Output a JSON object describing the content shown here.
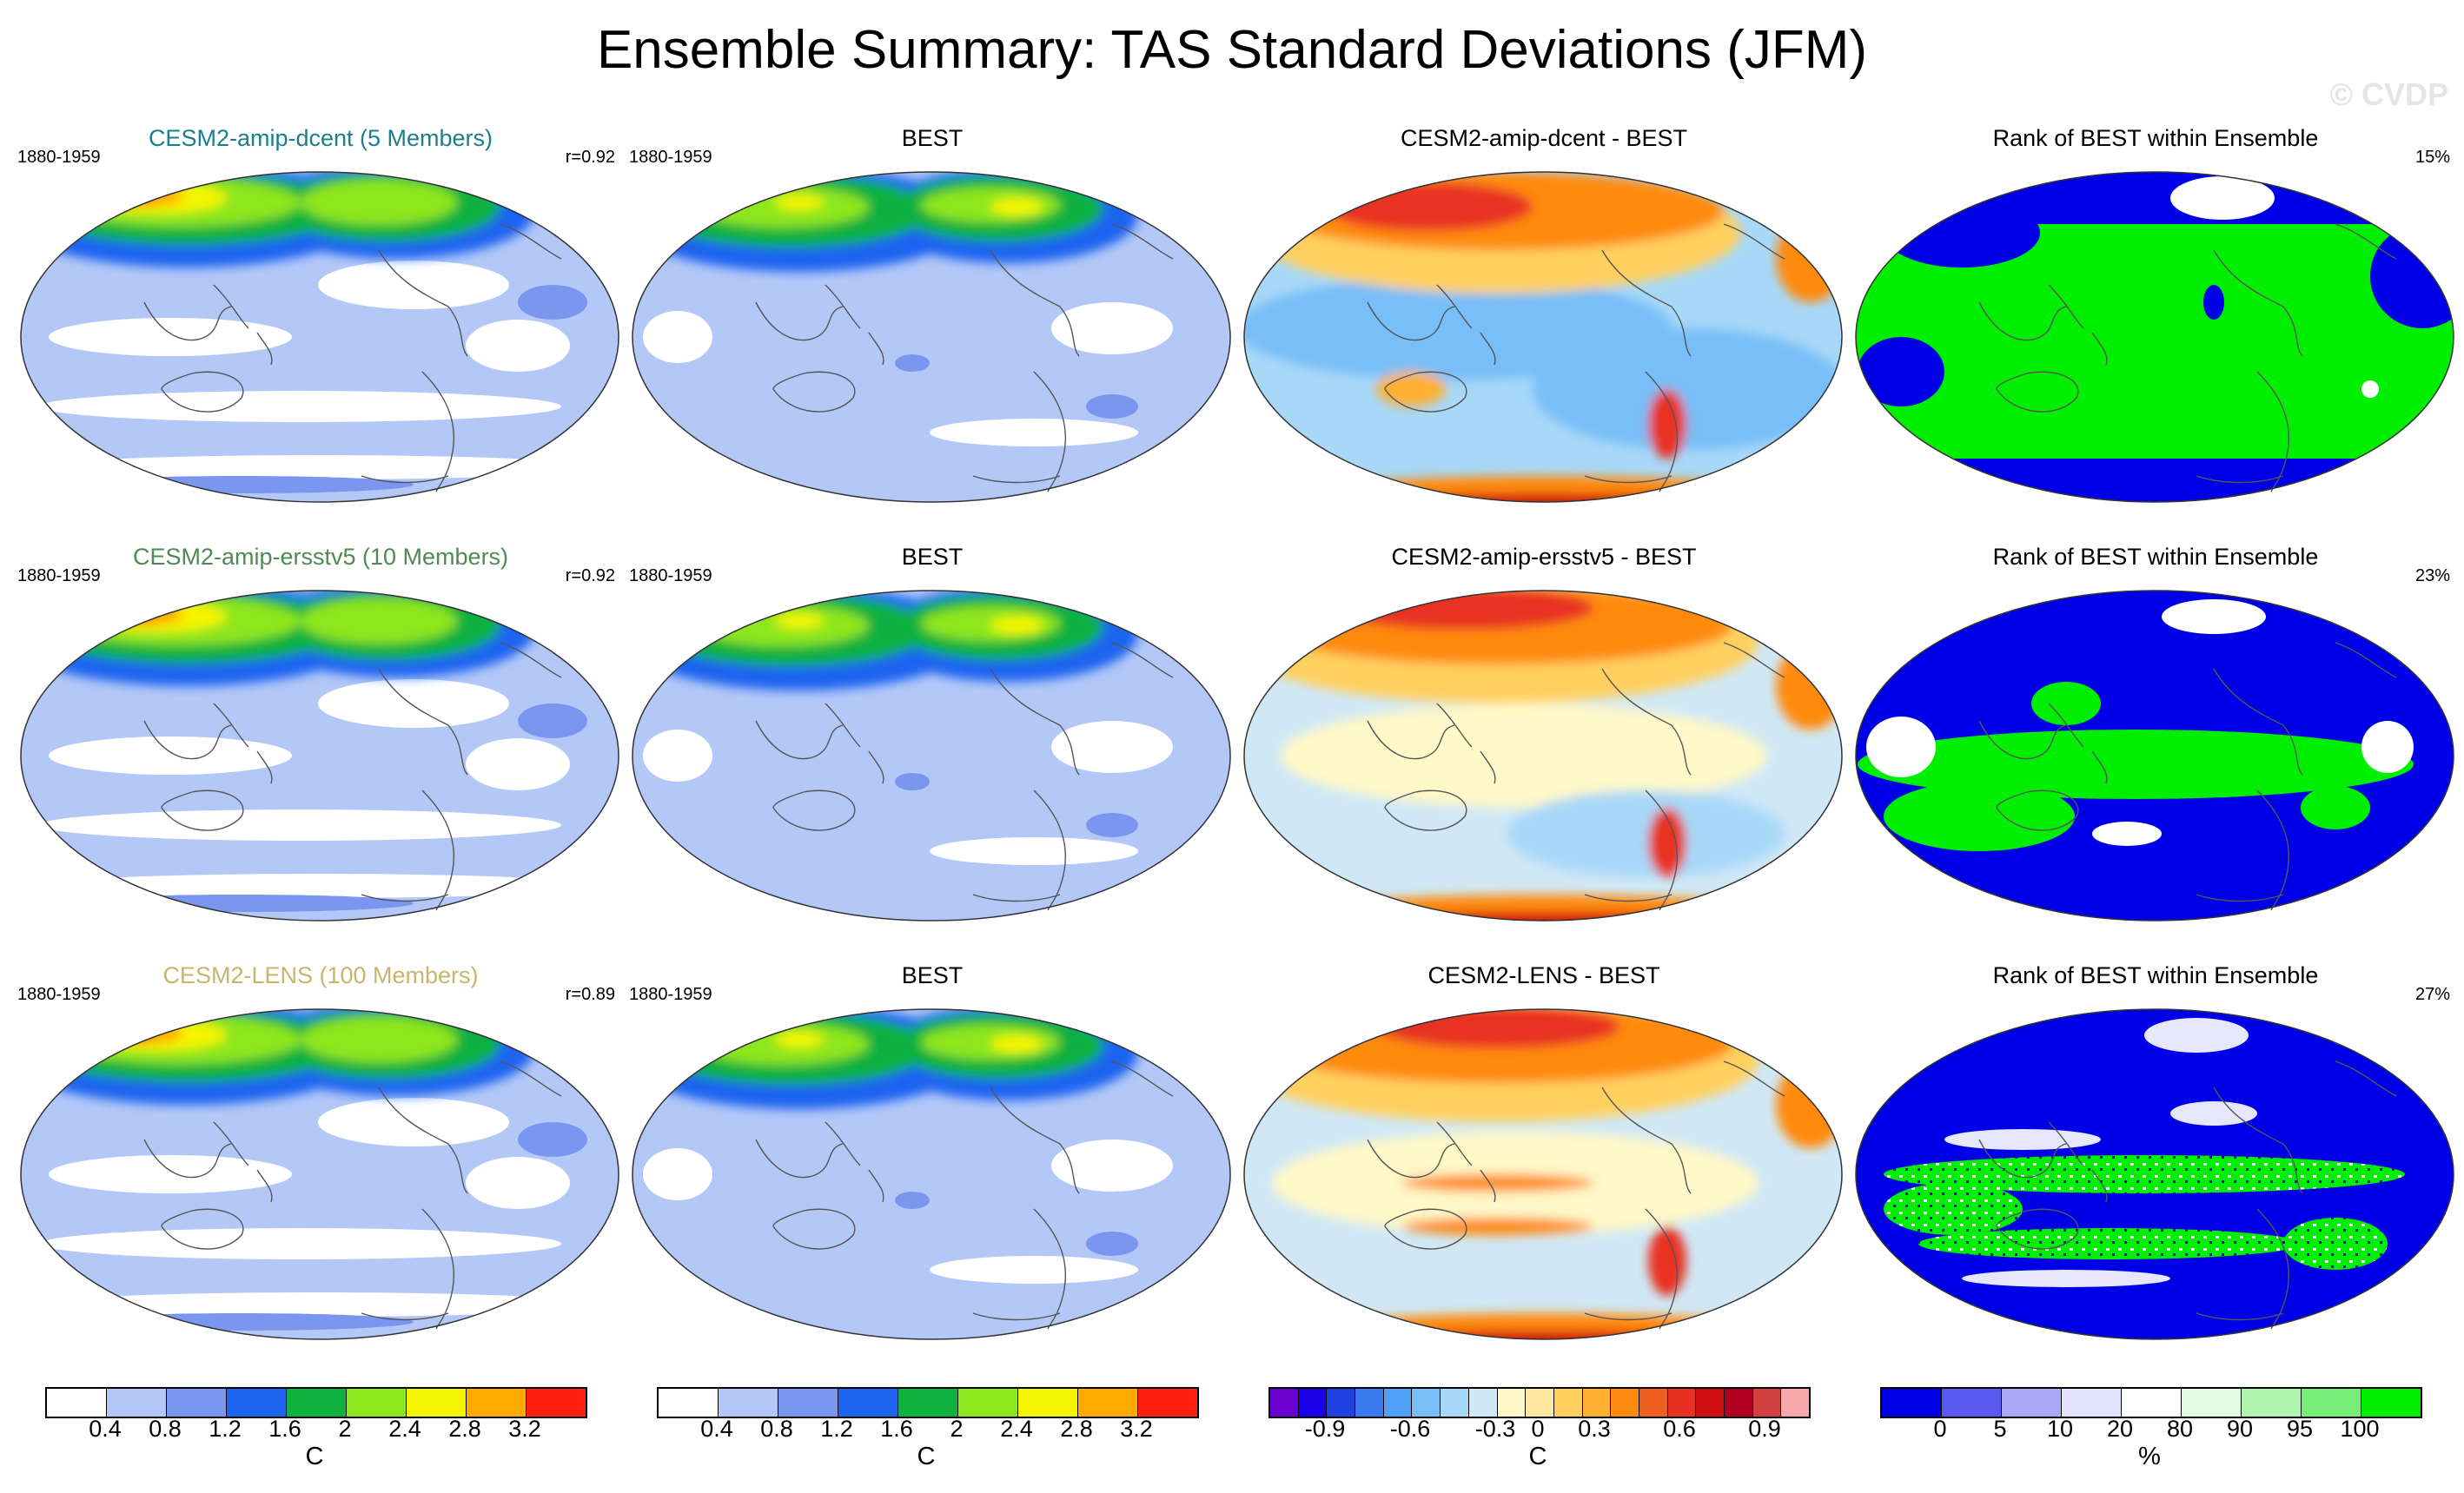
{
  "title": "Ensemble Summary: TAS Standard Deviations (JFM)",
  "watermark": "© CVDP",
  "colors": {
    "ensemble_ag1": "#1a7f8a",
    "ensemble_ag2": "#4f8a55",
    "ensemble_lens": "#c9b56a",
    "map_land_outline": "#555555",
    "rank_low": "#0000dd",
    "rank_high": "#00ee00"
  },
  "rows": [
    {
      "period": "1880-1959",
      "col1": {
        "title": "CESM2-amip-dcent (5 Members)",
        "title_color": "#1a7f8a",
        "corr": "r=0.92"
      },
      "col2": {
        "title": "BEST"
      },
      "col3": {
        "title": "CESM2-amip-dcent - BEST"
      },
      "col4": {
        "title": "Rank of BEST within Ensemble",
        "pct": "15%"
      }
    },
    {
      "period": "1880-1959",
      "col1": {
        "title": "CESM2-amip-ersstv5 (10 Members)",
        "title_color": "#4f8a55",
        "corr": "r=0.92"
      },
      "col2": {
        "title": "BEST"
      },
      "col3": {
        "title": "CESM2-amip-ersstv5 - BEST"
      },
      "col4": {
        "title": "Rank of BEST within Ensemble",
        "pct": "23%"
      }
    },
    {
      "period": "1880-1959",
      "col1": {
        "title": "CESM2-LENS (100 Members)",
        "title_color": "#c9b56a",
        "corr": "r=0.89"
      },
      "col2": {
        "title": "BEST"
      },
      "col3": {
        "title": "CESM2-LENS - BEST"
      },
      "col4": {
        "title": "Rank of BEST within Ensemble",
        "pct": "27%"
      }
    }
  ],
  "legends": {
    "std": {
      "colors": [
        "#ffffff",
        "#b4c8f8",
        "#7a96ee",
        "#1a64f0",
        "#10b040",
        "#8ee61e",
        "#f5f500",
        "#ffaa00",
        "#ff2010"
      ],
      "labels": [
        "0.4",
        "0.8",
        "1.2",
        "1.6",
        "2",
        "2.4",
        "2.8",
        "3.2"
      ],
      "unit": "C"
    },
    "diff": {
      "colors": [
        "#6a00d0",
        "#1a00e8",
        "#2040e0",
        "#3a7cf0",
        "#50a0f8",
        "#78bef8",
        "#a8d8f8",
        "#d0e8f6",
        "#fff8c8",
        "#ffe8a0",
        "#ffd060",
        "#ffb030",
        "#ff8a10",
        "#f06020",
        "#e83020",
        "#d01010",
        "#b00020",
        "#d04040",
        "#f8a8a8"
      ],
      "labels": [
        "-0.9",
        "-0.6",
        "-0.3",
        "0",
        "0.3",
        "0.6",
        "0.9"
      ],
      "unit": "C"
    },
    "rank": {
      "colors": [
        "#0000e6",
        "#5a5af0",
        "#a8a8f4",
        "#e2e2fc",
        "#ffffff",
        "#e2fce2",
        "#b0f4b0",
        "#78ee78",
        "#00ee00"
      ],
      "labels": [
        "0",
        "5",
        "10",
        "20",
        "80",
        "90",
        "95",
        "100"
      ],
      "unit": "%"
    }
  }
}
